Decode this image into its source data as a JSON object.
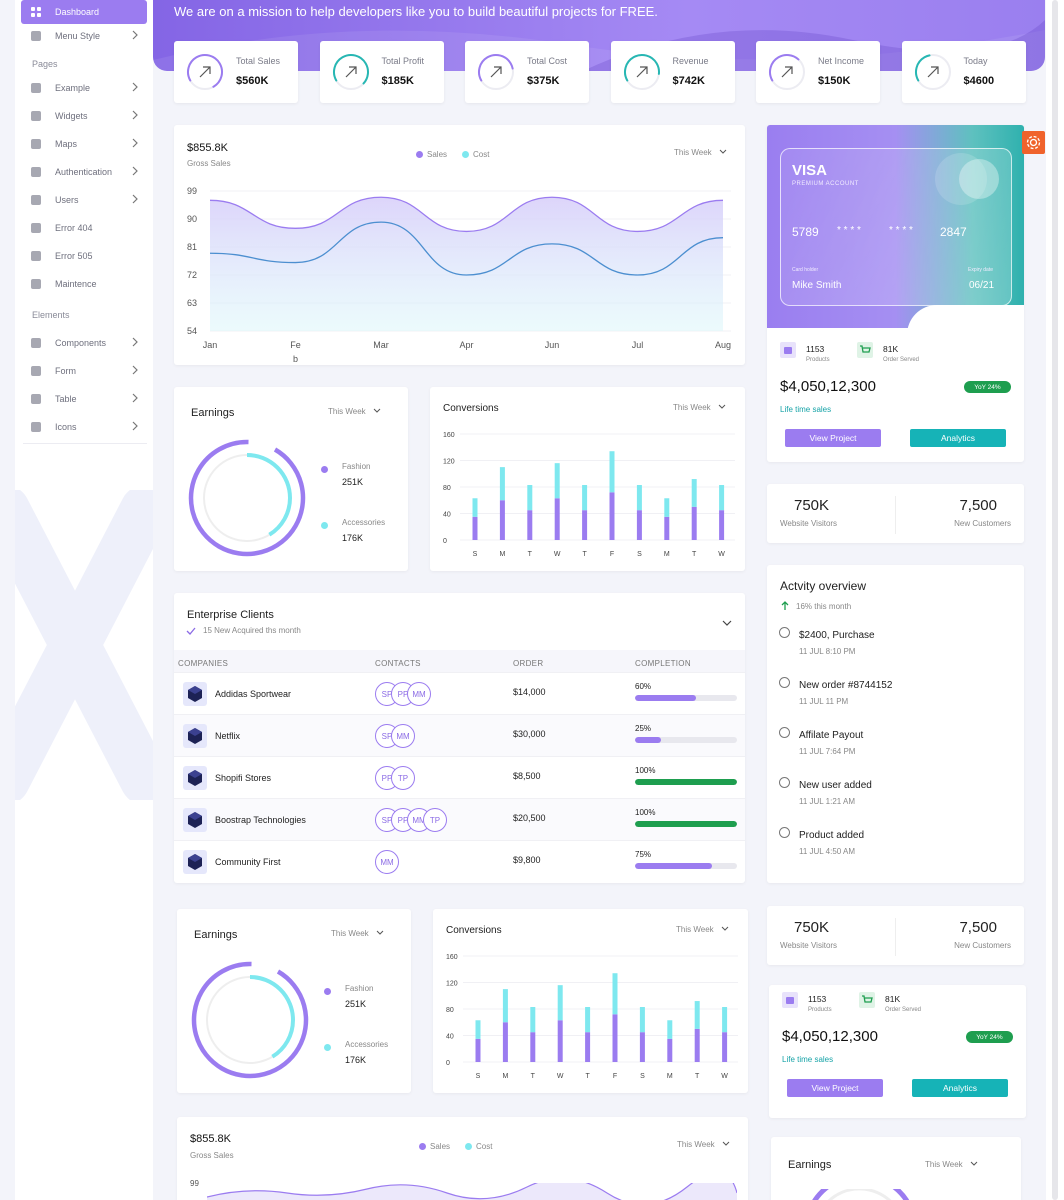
{
  "sidebar": {
    "items_top": [
      {
        "label": "Dashboard",
        "icon": "grid-icon",
        "active": true,
        "chevron": false
      },
      {
        "label": "Menu Style",
        "icon": "menu-style-icon",
        "active": false,
        "chevron": true
      }
    ],
    "section_pages": "Pages",
    "pages": [
      {
        "label": "Example",
        "icon": "youtube-icon",
        "chevron": true
      },
      {
        "label": "Widgets",
        "icon": "widgets-icon",
        "chevron": true
      },
      {
        "label": "Maps",
        "icon": "map-pin-icon",
        "chevron": true
      },
      {
        "label": "Authentication",
        "icon": "shield-icon",
        "chevron": true
      },
      {
        "label": "Users",
        "icon": "users-icon",
        "chevron": true
      },
      {
        "label": "Error 404",
        "icon": "alert-circle-icon",
        "chevron": false
      },
      {
        "label": "Error 505",
        "icon": "alert-triangle-icon",
        "chevron": false
      },
      {
        "label": "Maintence",
        "icon": "maintenance-icon",
        "chevron": false
      }
    ],
    "section_elements": "Elements",
    "elements": [
      {
        "label": "Components",
        "icon": "components-icon",
        "chevron": true
      },
      {
        "label": "Form",
        "icon": "form-icon",
        "chevron": true
      },
      {
        "label": "Table",
        "icon": "table-gear-icon",
        "chevron": true
      },
      {
        "label": "Icons",
        "icon": "info-icon",
        "chevron": true
      }
    ]
  },
  "hero": {
    "text": "We are on a mission to help developers like you to build beautiful projects for FREE."
  },
  "stats": [
    {
      "label": "Total Sales",
      "value": "$560K",
      "color": "#9b7cf0",
      "progress": 0.75
    },
    {
      "label": "Total Profit",
      "value": "$185K",
      "color": "#27b7b3",
      "progress": 0.7
    },
    {
      "label": "Total Cost",
      "value": "$375K",
      "color": "#9b7cf0",
      "progress": 0.55
    },
    {
      "label": "Revenue",
      "value": "$742K",
      "color": "#27b7b3",
      "progress": 0.6
    },
    {
      "label": "Net Income",
      "value": "$150K",
      "color": "#9b7cf0",
      "progress": 0.45
    },
    {
      "label": "Today",
      "value": "$4600",
      "color": "#27b7b3",
      "progress": 0.3
    }
  ],
  "colors": {
    "purple": "#9b7cf0",
    "cyan": "#7ee8ef",
    "teal": "#16b3b7",
    "green": "#1e9e4f",
    "orange": "#f0632c"
  },
  "gross": {
    "amount": "$855.8K",
    "label": "Gross Sales",
    "legend_sales": "Sales",
    "legend_cost": "Cost",
    "period": "This Week",
    "chart_data": {
      "type": "area",
      "x": [
        "Jan",
        "Feb",
        "Mar",
        "Apr",
        "Jun",
        "Jul",
        "Aug"
      ],
      "x_tick_labels": [
        [
          "Jan"
        ],
        [
          "Fe",
          "b"
        ],
        [
          "Mar"
        ],
        [
          "Apr"
        ],
        [
          "Jun"
        ],
        [
          "Jul"
        ],
        [
          "Aug"
        ]
      ],
      "yticks": [
        "99",
        "90",
        "81",
        "72",
        "63",
        "54"
      ],
      "ylim": [
        54,
        99
      ],
      "series": [
        {
          "name": "Sales",
          "color": "#9b7cf0",
          "values": [
            96,
            87,
            97,
            86,
            97,
            86,
            96
          ]
        },
        {
          "name": "Cost",
          "color": "#4c8fd0",
          "values": [
            79,
            76,
            89,
            72,
            82,
            72,
            84
          ]
        }
      ]
    }
  },
  "earnings": {
    "title": "Earnings",
    "period": "This Week",
    "legend": [
      {
        "name": "Fashion",
        "value": "251K",
        "color": "#9b7cf0"
      },
      {
        "name": "Accessories",
        "value": "176K",
        "color": "#7ee8ef"
      }
    ],
    "chart_data": {
      "type": "pie",
      "categories": [
        "Fashion",
        "Accessories"
      ],
      "values": [
        251,
        176
      ]
    }
  },
  "conversions": {
    "title": "Conversions",
    "period": "This Week",
    "chart_data": {
      "type": "bar",
      "stacked": true,
      "categories": [
        "S",
        "M",
        "T",
        "W",
        "T",
        "F",
        "S",
        "M",
        "T",
        "W"
      ],
      "yticks": [
        "160",
        "120",
        "80",
        "40",
        "0"
      ],
      "ylim": [
        0,
        160
      ],
      "series": [
        {
          "name": "",
          "color": "#9b7cf0",
          "values": [
            35,
            60,
            45,
            63,
            45,
            72,
            45,
            35,
            50,
            45
          ]
        },
        {
          "name": "",
          "color": "#7ee8ef",
          "values": [
            28,
            50,
            38,
            53,
            38,
            62,
            38,
            28,
            42,
            38
          ]
        }
      ]
    }
  },
  "visa": {
    "brand": "VISA",
    "tier": "PREMIUM ACCOUNT",
    "n1": "5789",
    "n2": "* * * *",
    "n3": "* * * *",
    "n4": "2847",
    "holder_label": "Card holder",
    "holder": "Mike Smith",
    "expiry_label": "Expiry date",
    "expiry": "06/21"
  },
  "lifetime": {
    "products_value": "1153",
    "products_label": "Products",
    "orders_value": "81K",
    "orders_label": "Order Served",
    "total": "$4,050,12,300",
    "badge": "YoY 24%",
    "subtitle": "Life time sales",
    "btn_view": "View Project",
    "btn_analytics": "Analytics"
  },
  "visitors": {
    "visitors_value": "750K",
    "visitors_label": "Website Visitors",
    "customers_value": "7,500",
    "customers_label": "New Customers"
  },
  "clients": {
    "title": "Enterprise Clients",
    "subtitle": "15 New Acquired ths month",
    "headers": [
      "COMPANIES",
      "CONTACTS",
      "ORDER",
      "COMPLETION"
    ],
    "rows": [
      {
        "name": "Addidas Sportwear",
        "contacts": [
          "SP",
          "PP",
          "MM"
        ],
        "order": "$14,000",
        "pct": "60%",
        "progress": 0.6,
        "color": "#9b7cf0"
      },
      {
        "name": "Netflix",
        "contacts": [
          "SP",
          "MM"
        ],
        "order": "$30,000",
        "pct": "25%",
        "progress": 0.25,
        "color": "#9b7cf0"
      },
      {
        "name": "Shopifi Stores",
        "contacts": [
          "PP",
          "TP"
        ],
        "order": "$8,500",
        "pct": "100%",
        "progress": 1.0,
        "color": "#1e9e4f"
      },
      {
        "name": "Boostrap Technologies",
        "contacts": [
          "SP",
          "PP",
          "MM",
          "TP"
        ],
        "order": "$20,500",
        "pct": "100%",
        "progress": 1.0,
        "color": "#1e9e4f"
      },
      {
        "name": "Community First",
        "contacts": [
          "MM"
        ],
        "order": "$9,800",
        "pct": "75%",
        "progress": 0.75,
        "color": "#9b7cf0"
      }
    ]
  },
  "activity": {
    "title": "Actvity overview",
    "subtitle": "16% this month",
    "items": [
      {
        "title": "$2400, Purchase",
        "time": "11 JUL 8:10 PM"
      },
      {
        "title": "New order #8744152",
        "time": "11 JUL 11 PM"
      },
      {
        "title": "Affilate Payout",
        "time": "11 JUL 7:64 PM"
      },
      {
        "title": "New user added",
        "time": "11 JUL 1:21 AM"
      },
      {
        "title": "Product added",
        "time": "11 JUL 4:50 AM"
      }
    ]
  }
}
